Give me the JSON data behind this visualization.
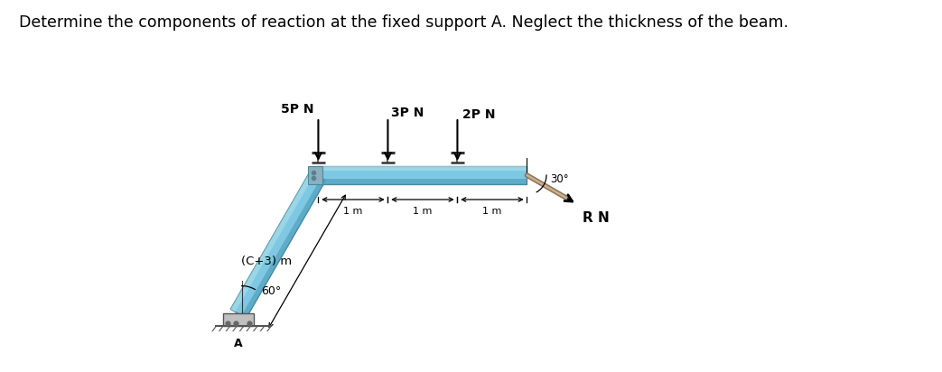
{
  "title": "Determine the components of reaction at the fixed support A. Neglect the thickness of the beam.",
  "title_fontsize": 12.5,
  "bg_color": "#ffffff",
  "beam_color_light": "#a8dce8",
  "beam_color_mid": "#7ec8e3",
  "beam_color_dark": "#3a8aaa",
  "beam_edge": "#4a8a9f",
  "load_labels": [
    "5P N",
    "3P N",
    "2P N"
  ],
  "rope_color_dark": "#8B7355",
  "rope_color_light": "#c8b090",
  "dim_label": "(C+3) m",
  "rn_label": "R N",
  "angle_30_label": "30°",
  "angle_60_label": "60°",
  "A_label": "A"
}
